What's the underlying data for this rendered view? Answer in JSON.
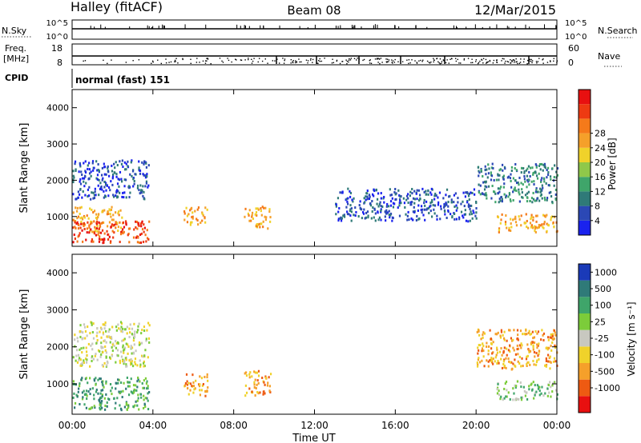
{
  "header": {
    "station": "Halley (fitACF)",
    "beam": "Beam 08",
    "date": "12/Mar/2015"
  },
  "nsky_panel": {
    "label": "N.Sky",
    "ticks": [
      "10^5",
      "10^0"
    ],
    "right_label": "N.Search",
    "right_ticks": [
      "10^5",
      "10^0"
    ]
  },
  "freq_panel": {
    "label_line1": "Freq.",
    "label_line2": "[MHz]",
    "ticks": [
      "18",
      "8"
    ],
    "right_label": "Nave",
    "right_ticks": [
      "60",
      "0"
    ]
  },
  "cpid": {
    "label": "CPID",
    "text": "normal (fast) 151"
  },
  "xaxis": {
    "label": "Time UT",
    "ticks": [
      "00:00",
      "04:00",
      "08:00",
      "12:00",
      "16:00",
      "20:00",
      "00:00"
    ],
    "tick_hours": [
      0,
      4,
      8,
      12,
      16,
      20,
      24
    ],
    "range_hours": [
      0,
      24
    ]
  },
  "yaxis": {
    "label": "Slant Range [km]",
    "ticks": [
      "1000",
      "2000",
      "3000",
      "4000"
    ],
    "tick_values": [
      1000,
      2000,
      3000,
      4000
    ],
    "range_km": [
      180,
      4500
    ]
  },
  "power_scale": {
    "label": "Power [dB]",
    "ticks": [
      "4",
      "8",
      "12",
      "16",
      "20",
      "24",
      "28"
    ],
    "colors": [
      "#1a22ee",
      "#2b48b5",
      "#2f7a78",
      "#3fa56a",
      "#8fc84a",
      "#f0d22a",
      "#f5a02a",
      "#f57a1a",
      "#ee3a12",
      "#e81010"
    ]
  },
  "velocity_scale": {
    "label": "Velocity [m s⁻¹]",
    "ticks": [
      "1000",
      "500",
      "100",
      "25",
      "-25",
      "-100",
      "-500",
      "-1000"
    ],
    "colors": [
      "#1a3ab8",
      "#2f7a78",
      "#3fa56a",
      "#7ccc3a",
      "#c8c8c0",
      "#f0d22a",
      "#f5a02a",
      "#ee5a12",
      "#e81010"
    ]
  },
  "chart_data": {
    "type": "heatmap",
    "x_unit": "hours UT",
    "y_unit": "km",
    "xlim": [
      0,
      24
    ],
    "ylim": [
      180,
      4500
    ],
    "power_echo_regions": [
      {
        "t0": 0.0,
        "t1": 3.8,
        "r0": 1500,
        "r1": 2600,
        "level": 1
      },
      {
        "t0": 0.0,
        "t1": 2.5,
        "r0": 600,
        "r1": 1300,
        "level": 6
      },
      {
        "t0": 0.0,
        "t1": 3.8,
        "r0": 300,
        "r1": 900,
        "level": 8
      },
      {
        "t0": 5.5,
        "t1": 6.7,
        "r0": 800,
        "r1": 1300,
        "level": 6
      },
      {
        "t0": 8.5,
        "t1": 9.8,
        "r0": 700,
        "r1": 1300,
        "level": 6
      },
      {
        "t0": 13.0,
        "t1": 20.0,
        "r0": 900,
        "r1": 1800,
        "level": 1
      },
      {
        "t0": 20.0,
        "t1": 24.0,
        "r0": 1400,
        "r1": 2500,
        "level": 2
      },
      {
        "t0": 21.0,
        "t1": 24.0,
        "r0": 600,
        "r1": 1100,
        "level": 6
      }
    ],
    "velocity_echo_regions": [
      {
        "t0": 0.0,
        "t1": 3.8,
        "r0": 1500,
        "r1": 2700,
        "level": 4
      },
      {
        "t0": 0.0,
        "t1": 3.8,
        "r0": 300,
        "r1": 1200,
        "level": 2
      },
      {
        "t0": 5.5,
        "t1": 6.7,
        "r0": 700,
        "r1": 1300,
        "level": 6
      },
      {
        "t0": 8.5,
        "t1": 9.8,
        "r0": 700,
        "r1": 1400,
        "level": 6
      },
      {
        "t0": 20.0,
        "t1": 24.0,
        "r0": 1400,
        "r1": 2500,
        "level": 6
      },
      {
        "t0": 21.0,
        "t1": 24.0,
        "r0": 600,
        "r1": 1100,
        "level": 3
      }
    ]
  }
}
